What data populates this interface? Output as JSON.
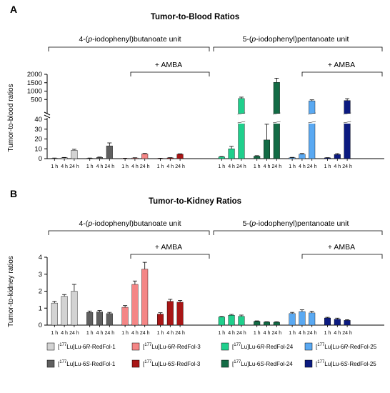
{
  "x_labels": [
    "1 h",
    "4 h",
    "24 h"
  ],
  "series_legend": [
    {
      "prefix": "[",
      "sup": "177",
      "mid": "Lu]Lu-6",
      "ital": "R",
      "suffix": "-RedFol-1",
      "color": "#d3d3d3"
    },
    {
      "prefix": "[",
      "sup": "177",
      "mid": "Lu]Lu-6",
      "ital": "S",
      "suffix": "-RedFol-1",
      "color": "#5f5f5f"
    },
    {
      "prefix": "[",
      "sup": "177",
      "mid": "Lu]Lu-6",
      "ital": "R",
      "suffix": "-RedFol-3",
      "color": "#f48686"
    },
    {
      "prefix": "[",
      "sup": "177",
      "mid": "Lu]Lu-6",
      "ital": "S",
      "suffix": "-RedFol-3",
      "color": "#a81616"
    },
    {
      "prefix": "[",
      "sup": "177",
      "mid": "Lu]Lu-6",
      "ital": "R",
      "suffix": "-RedFol-24",
      "color": "#1fcf8c"
    },
    {
      "prefix": "[",
      "sup": "177",
      "mid": "Lu]Lu-6",
      "ital": "S",
      "suffix": "-RedFol-24",
      "color": "#136b45"
    },
    {
      "prefix": "[",
      "sup": "177",
      "mid": "Lu]Lu-6",
      "ital": "R",
      "suffix": "-RedFol-25",
      "color": "#5aa9f2"
    },
    {
      "prefix": "[",
      "sup": "177",
      "mid": "Lu]Lu-6",
      "ital": "S",
      "suffix": "-RedFol-25",
      "color": "#0b1a80"
    }
  ],
  "chart_data": [
    {
      "panel": "A",
      "type": "bar",
      "title": "Tumor-to-Blood Ratios",
      "ylabel": "Tumor-to-blood ratios",
      "group_left": [
        "4-(",
        "p",
        "-iodophenyl)butanoate unit"
      ],
      "group_right": [
        "5-(",
        "p",
        "-iodophenyl)pentanoate unit"
      ],
      "amba_label": "+ AMBA",
      "yaxis_lower": {
        "range": [
          0,
          40
        ],
        "ticks": [
          "0",
          "10",
          "20",
          "30",
          "40"
        ]
      },
      "yaxis_upper": {
        "range": [
          0,
          2000
        ],
        "ticks": [
          "500",
          "1000",
          "1500",
          "2000"
        ]
      },
      "categories": [
        "1 h",
        "4 h",
        "24 h"
      ],
      "series": [
        {
          "name": "[177Lu]Lu-6R-RedFol-1",
          "values": [
            0.4,
            0.9,
            8.5
          ],
          "errors": [
            0.2,
            0.3,
            1.0
          ]
        },
        {
          "name": "[177Lu]Lu-6S-RedFol-1",
          "values": [
            0.4,
            1.2,
            13.0
          ],
          "errors": [
            0.2,
            0.4,
            3.0
          ]
        },
        {
          "name": "[177Lu]Lu-6R-RedFol-3",
          "values": [
            0.3,
            0.7,
            4.8
          ],
          "errors": [
            0.1,
            0.2,
            0.5
          ]
        },
        {
          "name": "[177Lu]Lu-6S-RedFol-3",
          "values": [
            0.3,
            0.8,
            4.5
          ],
          "errors": [
            0.1,
            0.2,
            0.4
          ]
        },
        {
          "name": "[177Lu]Lu-6R-RedFol-24",
          "values": [
            1.8,
            10.0,
            560
          ],
          "errors": [
            0.4,
            2.5,
            80
          ]
        },
        {
          "name": "[177Lu]Lu-6S-RedFol-24",
          "values": [
            2.5,
            19.0,
            1520
          ],
          "errors": [
            0.5,
            16.0,
            250
          ]
        },
        {
          "name": "[177Lu]Lu-6R-RedFol-25",
          "values": [
            1.0,
            4.5,
            420
          ],
          "errors": [
            0.3,
            0.7,
            60
          ]
        },
        {
          "name": "[177Lu]Lu-6S-RedFol-25",
          "values": [
            0.8,
            4.2,
            440
          ],
          "errors": [
            0.2,
            0.9,
            110
          ]
        }
      ]
    },
    {
      "panel": "B",
      "type": "bar",
      "title": "Tumor-to-Kidney Ratios",
      "ylabel": "Tumor-to-kidney ratios",
      "group_left": [
        "4-(",
        "p",
        "-iodophenyl)butanoate unit"
      ],
      "group_right": [
        "5-(",
        "p",
        "-iodophenyl)pentanoate unit"
      ],
      "amba_label": "+ AMBA",
      "ylim": [
        0,
        4
      ],
      "yticks": [
        "0",
        "1",
        "2",
        "3",
        "4"
      ],
      "categories": [
        "1 h",
        "4 h",
        "24 h"
      ],
      "series": [
        {
          "name": "[177Lu]Lu-6R-RedFol-1",
          "values": [
            1.3,
            1.7,
            2.0
          ],
          "errors": [
            0.1,
            0.1,
            0.4
          ]
        },
        {
          "name": "[177Lu]Lu-6S-RedFol-1",
          "values": [
            0.75,
            0.78,
            0.68
          ],
          "errors": [
            0.08,
            0.08,
            0.07
          ]
        },
        {
          "name": "[177Lu]Lu-6R-RedFol-3",
          "values": [
            1.05,
            2.4,
            3.3
          ],
          "errors": [
            0.1,
            0.2,
            0.4
          ]
        },
        {
          "name": "[177Lu]Lu-6S-RedFol-3",
          "values": [
            0.65,
            1.4,
            1.35
          ],
          "errors": [
            0.08,
            0.12,
            0.1
          ]
        },
        {
          "name": "[177Lu]Lu-6R-RedFol-24",
          "values": [
            0.48,
            0.58,
            0.52
          ],
          "errors": [
            0.03,
            0.05,
            0.07
          ]
        },
        {
          "name": "[177Lu]Lu-6S-RedFol-24",
          "values": [
            0.22,
            0.18,
            0.17
          ],
          "errors": [
            0.03,
            0.02,
            0.03
          ]
        },
        {
          "name": "[177Lu]Lu-6R-RedFol-25",
          "values": [
            0.68,
            0.8,
            0.72
          ],
          "errors": [
            0.07,
            0.1,
            0.1
          ]
        },
        {
          "name": "[177Lu]Lu-6S-RedFol-25",
          "values": [
            0.42,
            0.35,
            0.28
          ],
          "errors": [
            0.04,
            0.06,
            0.04
          ]
        }
      ]
    }
  ]
}
